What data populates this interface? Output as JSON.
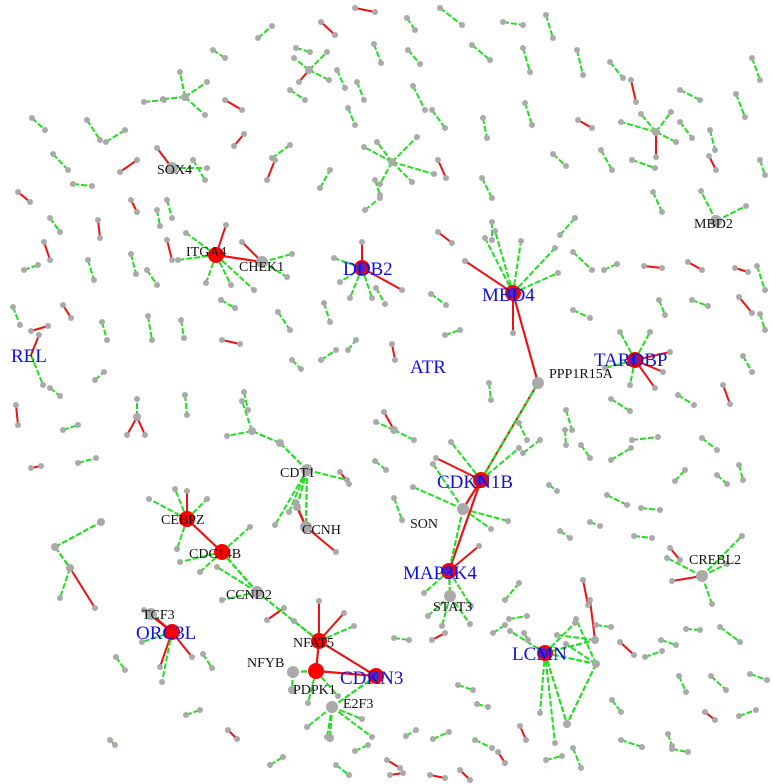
{
  "colors": {
    "background": "#ffffff",
    "edge_positive": "#22dd22",
    "edge_negative": "#ee1111",
    "node_gray": "#aaaaaa",
    "node_red": "#ff0000",
    "label_black": "#111111",
    "label_blue": "#1010dd"
  },
  "labels": {
    "SOX4": "SOX4",
    "ITGA4": "ITGA4",
    "CHEK1": "CHEK1",
    "DDB2": "DDB2",
    "MBD4": "MBD4",
    "MBD2": "MBD2",
    "REL": "REL",
    "ATR": "ATR",
    "PPP1R15A": "PPP1R15A",
    "TARDBP": "TARDBP",
    "CDT1": "CDT1",
    "CDKN1B": "CDKN1B",
    "CEBPZ": "CEBPZ",
    "CCNH": "CCNH",
    "SON": "SON",
    "CDC14B": "CDC14B",
    "MAP3K4": "MAP3K4",
    "CREBL2": "CREBL2",
    "CCND2": "CCND2",
    "STAT3": "STAT3",
    "TCF3": "TCF3",
    "ORC3L": "ORC3L",
    "NFAT5": "NFAT5",
    "LCMN": "LCMN",
    "NFYB": "NFYB",
    "CDKN3": "CDKN3",
    "PDPK1": "PDPK1",
    "E2F3": "E2F3"
  }
}
